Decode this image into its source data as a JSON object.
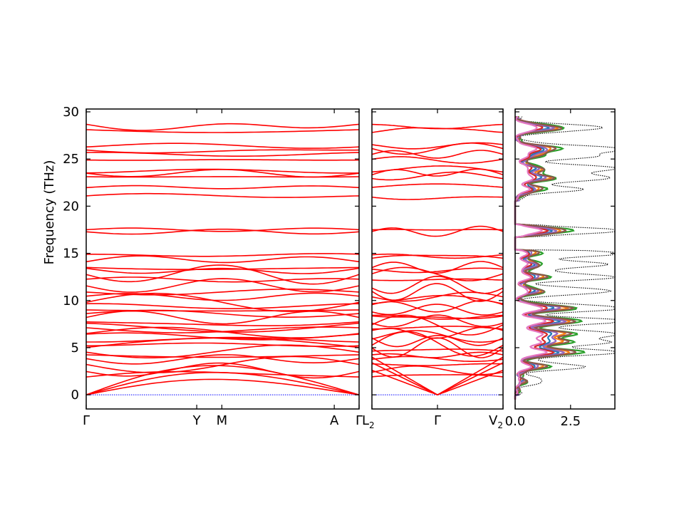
{
  "chart_data": [
    {
      "type": "line",
      "name": "phonon-band-structure-path-1",
      "ylabel": "Frequency (THz)",
      "ylim": [
        -1.5,
        30.3
      ],
      "yticks": [
        0,
        5,
        10,
        15,
        20,
        25,
        30
      ],
      "x_labels": [
        {
          "pos": 0.0,
          "label": "Γ"
        },
        {
          "pos": 0.405,
          "label": "Y"
        },
        {
          "pos": 0.497,
          "label": "M"
        },
        {
          "pos": 0.909,
          "label": "A"
        },
        {
          "pos": 1.0,
          "label": "Γ"
        }
      ],
      "series_color": "#ff0000",
      "zero_line_color": "#0000ff",
      "band_levels_at_gamma": [
        0,
        0,
        0,
        1.8,
        2.6,
        3.2,
        3.8,
        4.2,
        4.6,
        5.0,
        5.4,
        5.8,
        6.2,
        6.6,
        7.0,
        7.4,
        7.8,
        8.2,
        8.6,
        9.0,
        9.4,
        9.8,
        10.4,
        10.9,
        11.6,
        12.2,
        12.8,
        13.2,
        13.5,
        14.3,
        14.7,
        17.3,
        17.5,
        21.0,
        22.0,
        23.2,
        23.5,
        23.7,
        24.9,
        25.5,
        26.1,
        26.4,
        28.1,
        28.5
      ]
    },
    {
      "type": "line",
      "name": "phonon-band-structure-path-2",
      "x_labels": [
        {
          "pos": 0.0,
          "label": "L2"
        },
        {
          "pos": 0.5,
          "label": "Γ"
        },
        {
          "pos": 1.0,
          "label": "V2"
        }
      ],
      "series_color": "#ff0000"
    },
    {
      "type": "line",
      "name": "phonon-dos",
      "xlim": [
        0.0,
        4.5
      ],
      "xticks": [
        0.0,
        2.5
      ],
      "xtick_labels": [
        "0.0",
        "2.5"
      ],
      "series": [
        {
          "color": "#000000",
          "style": "dotted"
        },
        {
          "color": "#1f77b4"
        },
        {
          "color": "#ff7f0e"
        },
        {
          "color": "#2ca02c"
        },
        {
          "color": "#d62728"
        },
        {
          "color": "#9467bd"
        },
        {
          "color": "#8c564b"
        },
        {
          "color": "#e377c2"
        }
      ],
      "dos_peaks": [
        {
          "freq": 28.3,
          "total": 3.9,
          "partial": 2.8
        },
        {
          "freq": 26.1,
          "total": 4.6,
          "partial": 2.4
        },
        {
          "freq": 25.3,
          "total": 3.2,
          "partial": 1.2
        },
        {
          "freq": 24.0,
          "total": 4.5,
          "partial": 1.6
        },
        {
          "freq": 23.0,
          "total": 4.2,
          "partial": 2.2
        },
        {
          "freq": 21.8,
          "total": 2.8,
          "partial": 1.6
        },
        {
          "freq": 17.4,
          "total": 4.7,
          "partial": 3.2
        },
        {
          "freq": 15.0,
          "total": 4.6,
          "partial": 1.3
        },
        {
          "freq": 13.8,
          "total": 4.0,
          "partial": 1.5
        },
        {
          "freq": 12.5,
          "total": 4.4,
          "partial": 1.8
        },
        {
          "freq": 11.0,
          "total": 4.3,
          "partial": 1.6
        },
        {
          "freq": 9.2,
          "total": 4.9,
          "partial": 3.4
        },
        {
          "freq": 7.8,
          "total": 5.0,
          "partial": 3.8
        },
        {
          "freq": 6.5,
          "total": 4.4,
          "partial": 3.2
        },
        {
          "freq": 5.6,
          "total": 4.0,
          "partial": 3.0
        },
        {
          "freq": 4.5,
          "total": 4.6,
          "partial": 3.8
        },
        {
          "freq": 3.0,
          "total": 3.0,
          "partial": 1.8
        },
        {
          "freq": 1.5,
          "total": 1.2,
          "partial": 0.5
        }
      ]
    }
  ]
}
